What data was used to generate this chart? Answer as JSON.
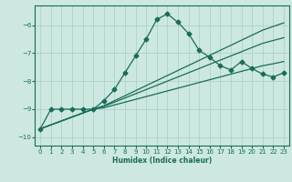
{
  "xlabel": "Humidex (Indice chaleur)",
  "bg_color": "#cce8e0",
  "line_color": "#1a6b5a",
  "grid_color": "#a8cfc4",
  "xlim": [
    -0.5,
    23.5
  ],
  "ylim": [
    -10.3,
    -5.3
  ],
  "yticks": [
    -10,
    -9,
    -8,
    -7,
    -6
  ],
  "xticks": [
    0,
    1,
    2,
    3,
    4,
    5,
    6,
    7,
    8,
    9,
    10,
    11,
    12,
    13,
    14,
    15,
    16,
    17,
    18,
    19,
    20,
    21,
    22,
    23
  ],
  "line1_x": [
    0,
    1,
    2,
    3,
    4,
    5,
    6,
    7,
    8,
    9,
    10,
    11,
    12,
    13,
    14,
    15,
    16,
    17,
    18,
    19,
    20,
    21,
    22,
    23
  ],
  "line1_y": [
    -9.7,
    -9.0,
    -9.0,
    -9.0,
    -9.0,
    -9.0,
    -8.7,
    -8.3,
    -7.7,
    -7.1,
    -6.5,
    -5.8,
    -5.6,
    -5.9,
    -6.3,
    -6.9,
    -7.15,
    -7.45,
    -7.6,
    -7.3,
    -7.55,
    -7.75,
    -7.85,
    -7.7
  ],
  "line2_x": [
    0,
    5,
    6,
    7,
    8,
    9,
    10,
    11,
    12,
    13,
    14,
    15,
    16,
    17,
    18,
    19,
    20,
    21,
    22,
    23
  ],
  "line2_y": [
    -9.7,
    -9.0,
    -8.95,
    -8.85,
    -8.75,
    -8.65,
    -8.55,
    -8.45,
    -8.35,
    -8.25,
    -8.15,
    -8.05,
    -7.95,
    -7.85,
    -7.75,
    -7.65,
    -7.55,
    -7.45,
    -7.38,
    -7.3
  ],
  "line3_x": [
    0,
    5,
    6,
    7,
    8,
    9,
    10,
    11,
    12,
    13,
    14,
    15,
    16,
    17,
    18,
    19,
    20,
    21,
    22,
    23
  ],
  "line3_y": [
    -9.7,
    -9.0,
    -8.9,
    -8.75,
    -8.6,
    -8.45,
    -8.3,
    -8.15,
    -8.0,
    -7.85,
    -7.7,
    -7.55,
    -7.4,
    -7.25,
    -7.1,
    -6.95,
    -6.8,
    -6.65,
    -6.55,
    -6.45
  ],
  "line4_x": [
    0,
    5,
    6,
    7,
    8,
    9,
    10,
    11,
    12,
    13,
    14,
    15,
    16,
    17,
    18,
    19,
    20,
    21,
    22,
    23
  ],
  "line4_y": [
    -9.7,
    -9.0,
    -8.88,
    -8.7,
    -8.52,
    -8.34,
    -8.16,
    -7.98,
    -7.8,
    -7.62,
    -7.44,
    -7.26,
    -7.08,
    -6.9,
    -6.72,
    -6.54,
    -6.36,
    -6.18,
    -6.05,
    -5.92
  ]
}
